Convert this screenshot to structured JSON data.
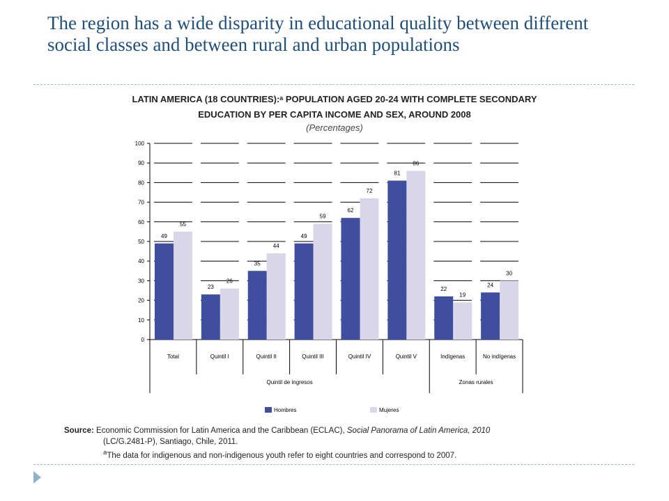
{
  "slide": {
    "title": "The region has a wide disparity in educational quality between different social classes and between rural and urban populations"
  },
  "chart_data": {
    "type": "bar",
    "title_line1": "LATIN AMERICA (18 COUNTRIES):ᵃ POPULATION AGED 20-24 WITH COMPLETE SECONDARY",
    "title_line2": "EDUCATION BY PER CAPITA INCOME AND SEX, AROUND 2008",
    "subtitle": "(Percentages)",
    "categories": [
      "Total",
      "Quintil I",
      "Quintil II",
      "Quintil III",
      "Quintil IV",
      "Quintil V",
      "Indígenas",
      "No indígenas"
    ],
    "groups": [
      {
        "label": "Quintil de ingresos",
        "span": [
          0,
          5
        ]
      },
      {
        "label": "Zonas rurales",
        "span": [
          6,
          7
        ]
      }
    ],
    "series": [
      {
        "name": "Hombres",
        "color": "#3F4E9E",
        "values": [
          49,
          23,
          35,
          49,
          62,
          81,
          22,
          24
        ]
      },
      {
        "name": "Mujeres",
        "color": "#D9D6EA",
        "values": [
          55,
          26,
          44,
          59,
          72,
          86,
          19,
          30
        ]
      }
    ],
    "yticks": [
      0,
      10,
      20,
      30,
      40,
      50,
      60,
      70,
      80,
      90,
      100
    ],
    "ylim": [
      0,
      100
    ],
    "grid": true,
    "legend": "bottom"
  },
  "source": {
    "label": "Source:",
    "text1": " Economic Commission for Latin America and the Caribbean (ECLAC), ",
    "italic": "Social Panorama of Latin America, 2010",
    "text2": "(LC/G.2481-P), Santiago, Chile, 2011.",
    "note_mark": "a",
    "note": "The data for indigenous and non-indigenous youth refer to eight countries and correspond to 2007."
  }
}
